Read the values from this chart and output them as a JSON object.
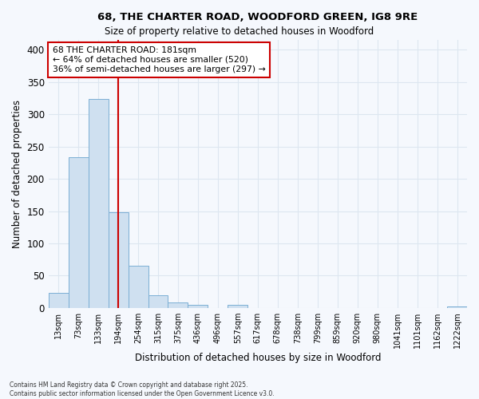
{
  "title_line1": "68, THE CHARTER ROAD, WOODFORD GREEN, IG8 9RE",
  "title_line2": "Size of property relative to detached houses in Woodford",
  "xlabel": "Distribution of detached houses by size in Woodford",
  "ylabel": "Number of detached properties",
  "bar_color": "#cfe0f0",
  "bar_edge_color": "#7bafd4",
  "background_color": "#f5f8fd",
  "grid_color": "#dde6f0",
  "categories": [
    "13sqm",
    "73sqm",
    "133sqm",
    "194sqm",
    "254sqm",
    "315sqm",
    "375sqm",
    "436sqm",
    "496sqm",
    "557sqm",
    "617sqm",
    "678sqm",
    "738sqm",
    "799sqm",
    "859sqm",
    "920sqm",
    "980sqm",
    "1041sqm",
    "1101sqm",
    "1162sqm",
    "1222sqm"
  ],
  "values": [
    24,
    234,
    323,
    148,
    65,
    20,
    8,
    5,
    0,
    5,
    0,
    0,
    0,
    0,
    0,
    0,
    0,
    0,
    0,
    0,
    3
  ],
  "ylim": [
    0,
    415
  ],
  "yticks": [
    0,
    50,
    100,
    150,
    200,
    250,
    300,
    350,
    400
  ],
  "property_line_x": 3.0,
  "annotation_text": "68 THE CHARTER ROAD: 181sqm\n← 64% of detached houses are smaller (520)\n36% of semi-detached houses are larger (297) →",
  "annotation_box_color": "#ffffff",
  "annotation_box_edge": "#cc0000",
  "red_line_color": "#cc0000",
  "footnote1": "Contains HM Land Registry data © Crown copyright and database right 2025.",
  "footnote2": "Contains public sector information licensed under the Open Government Licence v3.0."
}
